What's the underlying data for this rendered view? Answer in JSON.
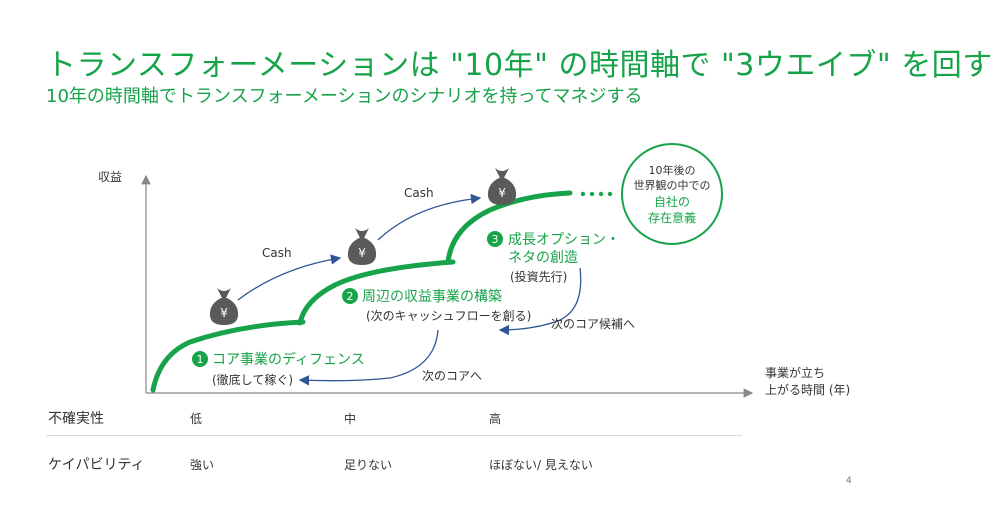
{
  "title": "トランスフォーメーションは \"10年\" の時間軸で \"3ウエイブ\" を回す",
  "subtitle": "10年の時間軸でトランスフォーメーションのシナリオを持ってマネジする",
  "axis": {
    "y_label": "収益",
    "x_label_line1": "事業が立ち",
    "x_label_line2": "上がる時間 (年)"
  },
  "cash_label": "Cash",
  "yen_symbol": "¥",
  "waves": [
    {
      "num": "1",
      "title": "コア事業のディフェンス",
      "sub": "(徹底して稼ぐ)"
    },
    {
      "num": "2",
      "title": "周辺の収益事業の構築",
      "sub": "(次のキャッシュフローを創る)"
    },
    {
      "num": "3",
      "title_line1": "成長オプション・",
      "title_line2": "ネタの創造",
      "sub": "(投資先行)"
    }
  ],
  "feedback": {
    "next_core": "次のコアへ",
    "next_core_candidate": "次のコア候補へ"
  },
  "vision": {
    "line1": "10年後の",
    "line2": "世界観の中での",
    "line3": "自社の",
    "line4": "存在意義"
  },
  "table": {
    "rows": [
      {
        "label": "不確実性",
        "values": [
          "低",
          "中",
          "高"
        ]
      },
      {
        "label": "ケイパビリティ",
        "values": [
          "強い",
          "足りない",
          "ほぼない/ 見えない"
        ]
      }
    ]
  },
  "page_number": "4",
  "colors": {
    "green": "#17a34a",
    "bag": "#5a5a5a",
    "arrow": "#2f5597"
  }
}
